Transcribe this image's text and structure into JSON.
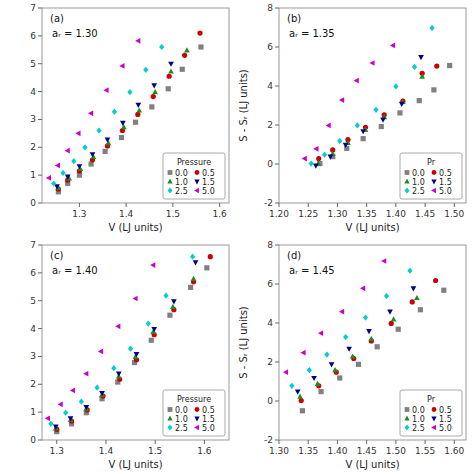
{
  "chart_data": [
    {
      "type": "scatter",
      "annotations": [
        "(a)",
        "aᵣ = 1.30"
      ],
      "x_label": "V (LJ units)",
      "xlim": [
        1.22,
        1.62
      ],
      "xticks": [
        1.3,
        1.4,
        1.5,
        1.6
      ],
      "ylim": [
        0,
        7
      ],
      "yticks": [
        0,
        1,
        2,
        3,
        4,
        5,
        6,
        7
      ],
      "grid": false,
      "legend": "lower right",
      "legend_title": "Pressure",
      "series": [
        {
          "name": "0.0",
          "color": "#808080",
          "marker": "square",
          "x": [
            1.255,
            1.275,
            1.3,
            1.325,
            1.355,
            1.39,
            1.42,
            1.455,
            1.49,
            1.52,
            1.56
          ],
          "values": [
            0.4,
            0.7,
            1.0,
            1.4,
            1.85,
            2.35,
            2.9,
            3.45,
            4.1,
            4.8,
            5.6
          ]
        },
        {
          "name": "0.5",
          "color": "#cc0000",
          "marker": "circle",
          "x": [
            1.255,
            1.275,
            1.3,
            1.328,
            1.36,
            1.392,
            1.425,
            1.458,
            1.492,
            1.525,
            1.558
          ],
          "values": [
            0.5,
            0.82,
            1.15,
            1.55,
            2.05,
            2.6,
            3.18,
            3.82,
            4.55,
            5.3,
            6.1
          ]
        },
        {
          "name": "1.0",
          "color": "#228B22",
          "marker": "triangle-up",
          "x": [
            1.255,
            1.278,
            1.302,
            1.33,
            1.362,
            1.395,
            1.428,
            1.462,
            1.496,
            1.53
          ],
          "values": [
            0.55,
            0.88,
            1.22,
            1.65,
            2.15,
            2.72,
            3.32,
            3.98,
            4.72,
            5.48
          ]
        },
        {
          "name": "1.5",
          "color": "#00008B",
          "marker": "triangle-down",
          "x": [
            1.252,
            1.275,
            1.3,
            1.328,
            1.36,
            1.393,
            1.426,
            1.46,
            1.496
          ],
          "values": [
            0.6,
            0.95,
            1.32,
            1.75,
            2.28,
            2.88,
            3.52,
            4.22,
            5.0
          ]
        },
        {
          "name": "2.5",
          "color": "#00CED1",
          "marker": "diamond",
          "x": [
            1.245,
            1.265,
            1.288,
            1.312,
            1.342,
            1.375,
            1.408,
            1.442,
            1.476
          ],
          "values": [
            0.7,
            1.08,
            1.5,
            2.0,
            2.6,
            3.28,
            3.98,
            4.78,
            5.6
          ]
        },
        {
          "name": "5.0",
          "color": "#CC00CC",
          "marker": "triangle-left",
          "x": [
            1.235,
            1.254,
            1.275,
            1.298,
            1.325,
            1.358,
            1.392,
            1.426
          ],
          "values": [
            0.9,
            1.35,
            1.88,
            2.5,
            3.22,
            4.05,
            4.92,
            5.82
          ]
        }
      ]
    },
    {
      "type": "scatter",
      "annotations": [
        "(b)",
        "aᵣ = 1.35"
      ],
      "x_label": "V (LJ units)",
      "y_label": "S - Sᵣ (LJ units)",
      "xlim": [
        1.2,
        1.52
      ],
      "xticks": [
        {
          "value": 1.2,
          "label": "1.20"
        },
        1.25,
        {
          "value": 1.3,
          "label": "1.30"
        },
        1.35,
        {
          "value": 1.4,
          "label": "1.40"
        },
        1.45,
        {
          "value": 1.5,
          "label": "1.50"
        }
      ],
      "ylim": [
        -2,
        8
      ],
      "yticks": [
        -2,
        0,
        2,
        4,
        6,
        8
      ],
      "grid": false,
      "legend": "lower right",
      "legend_title": "Pr",
      "series": [
        {
          "name": "0.0",
          "color": "#808080",
          "marker": "square",
          "x": [
            1.27,
            1.292,
            1.316,
            1.344,
            1.375,
            1.407,
            1.44,
            1.465,
            1.492
          ],
          "values": [
            0.02,
            0.38,
            0.8,
            1.3,
            1.92,
            2.62,
            3.25,
            3.8,
            5.05
          ]
        },
        {
          "name": "0.5",
          "color": "#cc0000",
          "marker": "circle",
          "x": [
            1.268,
            1.292,
            1.318,
            1.348,
            1.38,
            1.412,
            1.445,
            1.47
          ],
          "values": [
            0.28,
            0.72,
            1.25,
            1.88,
            2.52,
            3.22,
            4.65,
            5.02
          ]
        },
        {
          "name": "1.0",
          "color": "#228B22",
          "marker": "triangle-up",
          "x": [
            1.267,
            1.292,
            1.318,
            1.348,
            1.38,
            1.412,
            1.445
          ],
          "values": [
            0.02,
            0.52,
            1.08,
            1.75,
            2.4,
            3.18,
            4.48
          ]
        },
        {
          "name": "1.5",
          "color": "#00008B",
          "marker": "triangle-down",
          "x": [
            1.263,
            1.288,
            1.314,
            1.344,
            1.378,
            1.41,
            1.443
          ],
          "values": [
            -0.08,
            0.38,
            0.98,
            1.68,
            2.28,
            3.08,
            5.48
          ]
        },
        {
          "name": "2.5",
          "color": "#00CED1",
          "marker": "diamond",
          "x": [
            1.255,
            1.278,
            1.304,
            1.334,
            1.366,
            1.4,
            1.432,
            1.462
          ],
          "values": [
            0.02,
            0.48,
            1.18,
            1.98,
            2.78,
            3.98,
            4.98,
            6.98
          ]
        },
        {
          "name": "5.0",
          "color": "#CC00CC",
          "marker": "triangle-left",
          "x": [
            1.244,
            1.264,
            1.285,
            1.308,
            1.333,
            1.36,
            1.395
          ],
          "values": [
            0.28,
            0.78,
            1.98,
            3.28,
            4.28,
            5.18,
            6.08
          ]
        }
      ]
    },
    {
      "type": "scatter",
      "annotations": [
        "(c)",
        "aᵣ = 1.40"
      ],
      "x_label": "V (LJ units)",
      "xlim": [
        1.27,
        1.65
      ],
      "xticks": [
        1.3,
        1.4,
        1.5,
        1.6
      ],
      "ylim": [
        0,
        7
      ],
      "yticks": [
        0,
        1,
        2,
        3,
        4,
        5,
        6,
        7
      ],
      "grid": false,
      "legend": "lower right",
      "legend_title": "Pressure",
      "series": [
        {
          "name": "0.0",
          "color": "#808080",
          "marker": "square",
          "x": [
            1.3,
            1.33,
            1.36,
            1.392,
            1.424,
            1.458,
            1.492,
            1.53,
            1.572,
            1.605
          ],
          "values": [
            0.3,
            0.58,
            0.98,
            1.48,
            2.08,
            2.78,
            3.58,
            4.48,
            5.48,
            6.18
          ]
        },
        {
          "name": "0.5",
          "color": "#cc0000",
          "marker": "circle",
          "x": [
            1.3,
            1.33,
            1.362,
            1.394,
            1.428,
            1.462,
            1.498,
            1.538,
            1.578,
            1.612
          ],
          "values": [
            0.38,
            0.68,
            1.08,
            1.58,
            2.18,
            2.88,
            3.78,
            4.68,
            5.68,
            6.58
          ]
        },
        {
          "name": "1.0",
          "color": "#228B22",
          "marker": "triangle-up",
          "x": [
            1.298,
            1.328,
            1.36,
            1.392,
            1.426,
            1.46,
            1.496,
            1.536,
            1.578
          ],
          "values": [
            0.42,
            0.72,
            1.12,
            1.62,
            2.28,
            2.98,
            3.88,
            4.78,
            5.78
          ]
        },
        {
          "name": "1.5",
          "color": "#00008B",
          "marker": "triangle-down",
          "x": [
            1.298,
            1.328,
            1.36,
            1.392,
            1.426,
            1.462,
            1.498,
            1.538,
            1.582
          ],
          "values": [
            0.48,
            0.78,
            1.18,
            1.68,
            2.38,
            3.08,
            3.98,
            4.98,
            6.38
          ]
        },
        {
          "name": "2.5",
          "color": "#00CED1",
          "marker": "diamond",
          "x": [
            1.288,
            1.318,
            1.35,
            1.382,
            1.416,
            1.45,
            1.486,
            1.522,
            1.576
          ],
          "values": [
            0.58,
            0.98,
            1.38,
            1.88,
            2.58,
            3.28,
            4.18,
            5.18,
            6.58
          ]
        },
        {
          "name": "5.0",
          "color": "#CC00CC",
          "marker": "triangle-left",
          "x": [
            1.282,
            1.308,
            1.333,
            1.36,
            1.39,
            1.425,
            1.46,
            1.496
          ],
          "values": [
            0.78,
            1.28,
            1.78,
            2.38,
            3.18,
            4.08,
            5.08,
            6.28
          ]
        }
      ]
    },
    {
      "type": "scatter",
      "annotations": [
        "(d)",
        "aᵣ = 1.45"
      ],
      "x_label": "V (LJ units)",
      "y_label": "S - Sᵣ (LJ units)",
      "xlim": [
        1.3,
        1.62
      ],
      "xticks": [
        {
          "value": 1.3,
          "label": "1.30"
        },
        1.35,
        {
          "value": 1.4,
          "label": "1.40"
        },
        1.45,
        {
          "value": 1.5,
          "label": "1.50"
        },
        1.55,
        {
          "value": 1.6,
          "label": "1.60"
        }
      ],
      "ylim": [
        -2,
        8
      ],
      "yticks": [
        -2,
        0,
        2,
        4,
        6,
        8
      ],
      "grid": false,
      "legend": "lower right",
      "legend_title": "Pr",
      "series": [
        {
          "name": "0.0",
          "color": "#808080",
          "marker": "square",
          "x": [
            1.34,
            1.372,
            1.404,
            1.436,
            1.468,
            1.504,
            1.542,
            1.582
          ],
          "values": [
            -0.5,
            0.48,
            1.18,
            1.88,
            2.78,
            3.68,
            4.68,
            5.68
          ]
        },
        {
          "name": "0.5",
          "color": "#cc0000",
          "marker": "circle",
          "x": [
            1.338,
            1.368,
            1.398,
            1.428,
            1.458,
            1.492,
            1.528,
            1.568
          ],
          "values": [
            0.02,
            0.78,
            1.48,
            2.18,
            3.08,
            3.98,
            5.08,
            6.18
          ]
        },
        {
          "name": "1.0",
          "color": "#228B22",
          "marker": "triangle-up",
          "x": [
            1.336,
            1.366,
            1.396,
            1.426,
            1.458,
            1.496,
            1.536
          ],
          "values": [
            0.22,
            0.88,
            1.58,
            2.28,
            3.18,
            4.18,
            5.28
          ]
        },
        {
          "name": "1.5",
          "color": "#00008B",
          "marker": "triangle-down",
          "x": [
            1.332,
            1.36,
            1.39,
            1.42,
            1.454,
            1.49,
            1.53
          ],
          "values": [
            0.48,
            1.18,
            1.88,
            2.68,
            3.58,
            4.58,
            5.78
          ]
        },
        {
          "name": "2.5",
          "color": "#00CED1",
          "marker": "diamond",
          "x": [
            1.322,
            1.352,
            1.382,
            1.414,
            1.448,
            1.484,
            1.524
          ],
          "values": [
            0.78,
            1.58,
            2.38,
            3.28,
            4.28,
            5.38,
            6.68
          ]
        },
        {
          "name": "5.0",
          "color": "#CC00CC",
          "marker": "triangle-left",
          "x": [
            1.312,
            1.342,
            1.372,
            1.408,
            1.444,
            1.48
          ],
          "values": [
            1.48,
            2.48,
            3.48,
            4.58,
            5.78,
            7.18
          ]
        }
      ]
    }
  ]
}
